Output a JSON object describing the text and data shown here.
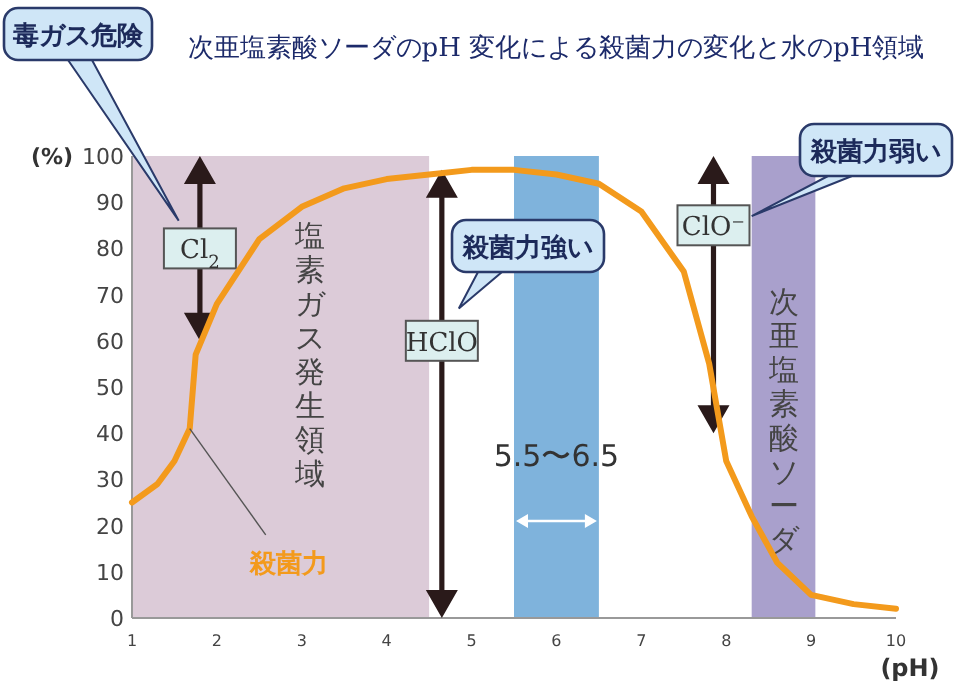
{
  "chart_data": {
    "type": "line",
    "title": "次亜塩素酸ソーダのpH 変化による殺菌力の変化と水のpH領域",
    "xlabel": "(pH)",
    "ylabel": "(%)",
    "x": [
      1,
      1.3,
      1.5,
      1.68,
      1.75,
      2,
      2.5,
      3,
      3.5,
      4,
      4.5,
      5,
      5.5,
      6,
      6.5,
      7,
      7.5,
      7.8,
      8,
      8.3,
      8.6,
      9,
      9.5,
      10
    ],
    "series": [
      {
        "name": "殺菌力",
        "color": "#f39a1c",
        "values": [
          25,
          29,
          34,
          41,
          57,
          68,
          82,
          89,
          93,
          95,
          96,
          97,
          97,
          96,
          94,
          88,
          75,
          55,
          34,
          22,
          12,
          5,
          3,
          2
        ]
      }
    ],
    "xlim": [
      1,
      10
    ],
    "ylim": [
      0,
      100
    ],
    "xticks": [
      1,
      2,
      3,
      4,
      5,
      6,
      7,
      8,
      9,
      10
    ],
    "yticks": [
      0,
      10,
      20,
      30,
      40,
      50,
      60,
      70,
      80,
      90,
      100
    ],
    "grid": false,
    "marker": "none",
    "line_style": "solid",
    "bands": [
      {
        "axis": "x",
        "from": 1,
        "to": 4.5,
        "label": "塩素ガス発生領域",
        "color": "#dccbd8"
      },
      {
        "axis": "x",
        "from": 5.5,
        "to": 6.5,
        "label": "5.5〜6.5",
        "color": "#7fb3dc"
      },
      {
        "axis": "x",
        "from": 8.3,
        "to": 9.05,
        "label": "次亜塩素酸ソーダ",
        "color": "#a9a0cc"
      }
    ],
    "annotations": [
      {
        "text": "Cl$_{2}$",
        "x": 1.8,
        "y": 80
      },
      {
        "text": "HClO",
        "x": 4.65,
        "y": 60
      },
      {
        "text": "ClO⁻",
        "x": 7.85,
        "y": 85
      },
      "毒ガス危険",
      "殺菌力強い",
      "殺菌力弱い"
    ]
  }
}
